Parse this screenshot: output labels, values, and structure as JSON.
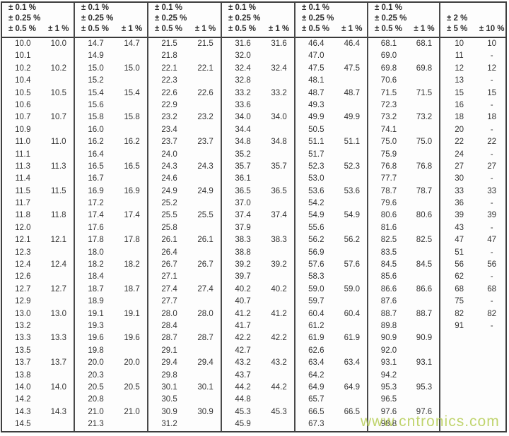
{
  "watermark": {
    "text": "www.cntronics.com",
    "color": "#b6cd56"
  },
  "colors": {
    "border": "#3e3e3e",
    "text": "#323232",
    "background": "#fdfdfd"
  },
  "table": {
    "groups": [
      {
        "header": {
          "left_lines": [
            "± 0.1 %",
            "± 0.25 %",
            "± 0.5 %"
          ],
          "right": "± 1 %"
        },
        "rows": [
          [
            "10.0",
            "10.0"
          ],
          [
            "10.1",
            ""
          ],
          [
            "10.2",
            "10.2"
          ],
          [
            "10.4",
            ""
          ],
          [
            "10.5",
            "10.5"
          ],
          [
            "10.6",
            ""
          ],
          [
            "10.7",
            "10.7"
          ],
          [
            "10.9",
            ""
          ],
          [
            "11.0",
            "11.0"
          ],
          [
            "11.1",
            ""
          ],
          [
            "11.3",
            "11.3"
          ],
          [
            "11.4",
            ""
          ],
          [
            "11.5",
            "11.5"
          ],
          [
            "11.7",
            ""
          ],
          [
            "11.8",
            "11.8"
          ],
          [
            "12.0",
            ""
          ],
          [
            "12.1",
            "12.1"
          ],
          [
            "12.3",
            ""
          ],
          [
            "12.4",
            "12.4"
          ],
          [
            "12.6",
            ""
          ],
          [
            "12.7",
            "12.7"
          ],
          [
            "12.9",
            ""
          ],
          [
            "13.0",
            "13.0"
          ],
          [
            "13.2",
            ""
          ],
          [
            "13.3",
            "13.3"
          ],
          [
            "13.5",
            ""
          ],
          [
            "13.7",
            "13.7"
          ],
          [
            "13.8",
            ""
          ],
          [
            "14.0",
            "14.0"
          ],
          [
            "14.2",
            ""
          ],
          [
            "14.3",
            "14.3"
          ],
          [
            "14.5",
            ""
          ]
        ]
      },
      {
        "header": {
          "left_lines": [
            "± 0.1 %",
            "± 0.25 %",
            "± 0.5 %"
          ],
          "right": "± 1 %"
        },
        "rows": [
          [
            "14.7",
            "14.7"
          ],
          [
            "14.9",
            ""
          ],
          [
            "15.0",
            "15.0"
          ],
          [
            "15.2",
            ""
          ],
          [
            "15.4",
            "15.4"
          ],
          [
            "15.6",
            ""
          ],
          [
            "15.8",
            "15.8"
          ],
          [
            "16.0",
            ""
          ],
          [
            "16.2",
            "16.2"
          ],
          [
            "16.4",
            ""
          ],
          [
            "16.5",
            "16.5"
          ],
          [
            "16.7",
            ""
          ],
          [
            "16.9",
            "16.9"
          ],
          [
            "17.2",
            ""
          ],
          [
            "17.4",
            "17.4"
          ],
          [
            "17.6",
            ""
          ],
          [
            "17.8",
            "17.8"
          ],
          [
            "18.0",
            ""
          ],
          [
            "18.2",
            "18.2"
          ],
          [
            "18.4",
            ""
          ],
          [
            "18.7",
            "18.7"
          ],
          [
            "18.9",
            ""
          ],
          [
            "19.1",
            "19.1"
          ],
          [
            "19.3",
            ""
          ],
          [
            "19.6",
            "19.6"
          ],
          [
            "19.8",
            ""
          ],
          [
            "20.0",
            "20.0"
          ],
          [
            "20.3",
            ""
          ],
          [
            "20.5",
            "20.5"
          ],
          [
            "20.8",
            ""
          ],
          [
            "21.0",
            "21.0"
          ],
          [
            "21.3",
            ""
          ]
        ]
      },
      {
        "header": {
          "left_lines": [
            "± 0.1 %",
            "± 0.25 %",
            "± 0.5 %"
          ],
          "right": "± 1 %"
        },
        "rows": [
          [
            "21.5",
            "21.5"
          ],
          [
            "21.8",
            ""
          ],
          [
            "22.1",
            "22.1"
          ],
          [
            "22.3",
            ""
          ],
          [
            "22.6",
            "22.6"
          ],
          [
            "22.9",
            ""
          ],
          [
            "23.2",
            "23.2"
          ],
          [
            "23.4",
            ""
          ],
          [
            "23.7",
            "23.7"
          ],
          [
            "24.0",
            ""
          ],
          [
            "24.3",
            "24.3"
          ],
          [
            "24.6",
            ""
          ],
          [
            "24.9",
            "24.9"
          ],
          [
            "25.2",
            ""
          ],
          [
            "25.5",
            "25.5"
          ],
          [
            "25.8",
            ""
          ],
          [
            "26.1",
            "26.1"
          ],
          [
            "26.4",
            ""
          ],
          [
            "26.7",
            "26.7"
          ],
          [
            "27.1",
            ""
          ],
          [
            "27.4",
            "27.4"
          ],
          [
            "27.7",
            ""
          ],
          [
            "28.0",
            "28.0"
          ],
          [
            "28.4",
            ""
          ],
          [
            "28.7",
            "28.7"
          ],
          [
            "29.1",
            ""
          ],
          [
            "29.4",
            "29.4"
          ],
          [
            "29.8",
            ""
          ],
          [
            "30.1",
            "30.1"
          ],
          [
            "30.5",
            ""
          ],
          [
            "30.9",
            "30.9"
          ],
          [
            "31.2",
            ""
          ]
        ]
      },
      {
        "header": {
          "left_lines": [
            "± 0.1 %",
            "± 0.25 %",
            "± 0.5 %"
          ],
          "right": "± 1 %"
        },
        "rows": [
          [
            "31.6",
            "31.6"
          ],
          [
            "32.0",
            ""
          ],
          [
            "32.4",
            "32.4"
          ],
          [
            "32.8",
            ""
          ],
          [
            "33.2",
            "33.2"
          ],
          [
            "33.6",
            ""
          ],
          [
            "34.0",
            "34.0"
          ],
          [
            "34.4",
            ""
          ],
          [
            "34.8",
            "34.8"
          ],
          [
            "35.2",
            ""
          ],
          [
            "35.7",
            "35.7"
          ],
          [
            "36.1",
            ""
          ],
          [
            "36.5",
            "36.5"
          ],
          [
            "37.0",
            ""
          ],
          [
            "37.4",
            "37.4"
          ],
          [
            "37.9",
            ""
          ],
          [
            "38.3",
            "38.3"
          ],
          [
            "38.8",
            ""
          ],
          [
            "39.2",
            "39.2"
          ],
          [
            "39.7",
            ""
          ],
          [
            "40.2",
            "40.2"
          ],
          [
            "40.7",
            ""
          ],
          [
            "41.2",
            "41.2"
          ],
          [
            "41.7",
            ""
          ],
          [
            "42.2",
            "42.2"
          ],
          [
            "42.7",
            ""
          ],
          [
            "43.2",
            "43.2"
          ],
          [
            "43.7",
            ""
          ],
          [
            "44.2",
            "44.2"
          ],
          [
            "44.8",
            ""
          ],
          [
            "45.3",
            "45.3"
          ],
          [
            "45.9",
            ""
          ]
        ]
      },
      {
        "header": {
          "left_lines": [
            "± 0.1 %",
            "± 0.25 %",
            "± 0.5 %"
          ],
          "right": "± 1 %"
        },
        "rows": [
          [
            "46.4",
            "46.4"
          ],
          [
            "47.0",
            ""
          ],
          [
            "47.5",
            "47.5"
          ],
          [
            "48.1",
            ""
          ],
          [
            "48.7",
            "48.7"
          ],
          [
            "49.3",
            ""
          ],
          [
            "49.9",
            "49.9"
          ],
          [
            "50.5",
            ""
          ],
          [
            "51.1",
            "51.1"
          ],
          [
            "51.7",
            ""
          ],
          [
            "52.3",
            "52.3"
          ],
          [
            "53.0",
            ""
          ],
          [
            "53.6",
            "53.6"
          ],
          [
            "54.2",
            ""
          ],
          [
            "54.9",
            "54.9"
          ],
          [
            "55.6",
            ""
          ],
          [
            "56.2",
            "56.2"
          ],
          [
            "56.9",
            ""
          ],
          [
            "57.6",
            "57.6"
          ],
          [
            "58.3",
            ""
          ],
          [
            "59.0",
            "59.0"
          ],
          [
            "59.7",
            ""
          ],
          [
            "60.4",
            "60.4"
          ],
          [
            "61.2",
            ""
          ],
          [
            "61.9",
            "61.9"
          ],
          [
            "62.6",
            ""
          ],
          [
            "63.4",
            "63.4"
          ],
          [
            "64.2",
            ""
          ],
          [
            "64.9",
            "64.9"
          ],
          [
            "65.7",
            ""
          ],
          [
            "66.5",
            "66.5"
          ],
          [
            "67.3",
            ""
          ]
        ]
      },
      {
        "header": {
          "left_lines": [
            "± 0.1 %",
            "± 0.25 %",
            "± 0.5 %"
          ],
          "right": "± 1 %"
        },
        "rows": [
          [
            "68.1",
            "68.1"
          ],
          [
            "69.0",
            ""
          ],
          [
            "69.8",
            "69.8"
          ],
          [
            "70.6",
            ""
          ],
          [
            "71.5",
            "71.5"
          ],
          [
            "72.3",
            ""
          ],
          [
            "73.2",
            "73.2"
          ],
          [
            "74.1",
            ""
          ],
          [
            "75.0",
            "75.0"
          ],
          [
            "75.9",
            ""
          ],
          [
            "76.8",
            "76.8"
          ],
          [
            "77.7",
            ""
          ],
          [
            "78.7",
            "78.7"
          ],
          [
            "79.6",
            ""
          ],
          [
            "80.6",
            "80.6"
          ],
          [
            "81.6",
            ""
          ],
          [
            "82.5",
            "82.5"
          ],
          [
            "83.5",
            ""
          ],
          [
            "84.5",
            "84.5"
          ],
          [
            "85.6",
            ""
          ],
          [
            "86.6",
            "86.6"
          ],
          [
            "87.6",
            ""
          ],
          [
            "88.7",
            "88.7"
          ],
          [
            "89.8",
            ""
          ],
          [
            "90.9",
            "90.9"
          ],
          [
            "92.0",
            ""
          ],
          [
            "93.1",
            "93.1"
          ],
          [
            "94.2",
            ""
          ],
          [
            "95.3",
            "95.3"
          ],
          [
            "96.5",
            ""
          ],
          [
            "97.6",
            "97.6"
          ],
          [
            "98.8",
            ""
          ]
        ]
      },
      {
        "header": {
          "left_lines": [
            "± 2 %",
            "± 5 %"
          ],
          "right": "± 10 %"
        },
        "rows": [
          [
            "10",
            "10"
          ],
          [
            "11",
            "-"
          ],
          [
            "12",
            "12"
          ],
          [
            "13",
            "-"
          ],
          [
            "15",
            "15"
          ],
          [
            "16",
            "-"
          ],
          [
            "18",
            "18"
          ],
          [
            "20",
            "-"
          ],
          [
            "22",
            "22"
          ],
          [
            "24",
            "-"
          ],
          [
            "27",
            "27"
          ],
          [
            "30",
            "-"
          ],
          [
            "33",
            "33"
          ],
          [
            "36",
            "-"
          ],
          [
            "39",
            "39"
          ],
          [
            "43",
            "-"
          ],
          [
            "47",
            "47"
          ],
          [
            "51",
            "-"
          ],
          [
            "56",
            "56"
          ],
          [
            "62",
            "-"
          ],
          [
            "68",
            "68"
          ],
          [
            "75",
            "-"
          ],
          [
            "82",
            "82"
          ],
          [
            "91",
            "-"
          ],
          [
            "",
            ""
          ],
          [
            "",
            ""
          ],
          [
            "",
            ""
          ],
          [
            "",
            ""
          ],
          [
            "",
            ""
          ],
          [
            "",
            ""
          ],
          [
            "",
            ""
          ],
          [
            "",
            ""
          ]
        ]
      }
    ]
  }
}
